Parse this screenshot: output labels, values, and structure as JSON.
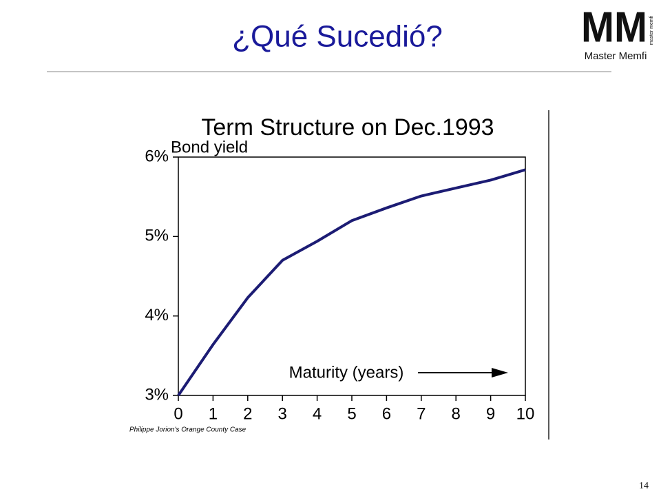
{
  "slide": {
    "title": "¿Qué Sucedió?",
    "logo_mark": "MM",
    "logo_text": "Master Memfi",
    "logo_vertical": "master memfi",
    "page_number": "14"
  },
  "chart_data": {
    "type": "line",
    "title": "Term Structure on Dec.1993",
    "y_label": "Bond yield",
    "x_label": "Maturity (years)",
    "source": "Philippe Jorion's Orange County Case",
    "x": [
      0,
      1,
      2,
      3,
      4,
      5,
      6,
      7,
      8,
      9,
      10
    ],
    "series": [
      {
        "color": "#1c1c74",
        "values": [
          3.0,
          3.64,
          4.23,
          4.7,
          4.94,
          5.2,
          5.36,
          5.51,
          5.61,
          5.71,
          5.84
        ]
      }
    ],
    "xlim": [
      0,
      10
    ],
    "xticks": [
      0,
      1,
      2,
      3,
      4,
      5,
      6,
      7,
      8,
      9,
      10
    ],
    "ylim": [
      3,
      6
    ],
    "yticks": [
      {
        "value": 3,
        "label": "3%"
      },
      {
        "value": 4,
        "label": "4%"
      },
      {
        "value": 5,
        "label": "5%"
      },
      {
        "value": 6,
        "label": "6%"
      }
    ],
    "grid": false
  }
}
